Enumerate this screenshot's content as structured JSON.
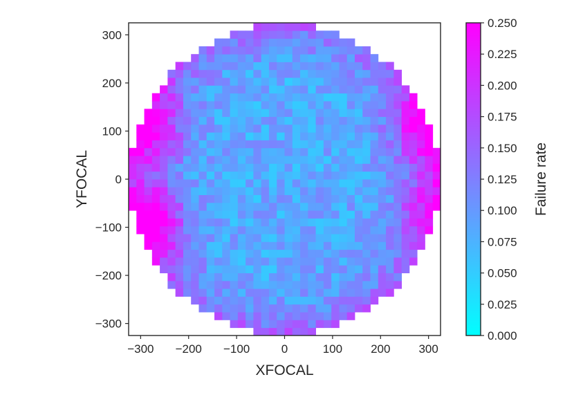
{
  "chart_data": {
    "type": "heatmap",
    "title": "",
    "xlabel": "XFOCAL",
    "ylabel": "YFOCAL",
    "xlim": [
      -325,
      325
    ],
    "ylim": [
      -325,
      325
    ],
    "xticks": [
      -300,
      -200,
      -100,
      0,
      100,
      200,
      300
    ],
    "yticks": [
      -300,
      -200,
      -100,
      0,
      100,
      200,
      300
    ],
    "xtick_labels": [
      "−300",
      "−200",
      "−100",
      "0",
      "100",
      "200",
      "300"
    ],
    "ytick_labels": [
      "−300",
      "−200",
      "−100",
      "0",
      "100",
      "200",
      "300"
    ],
    "grid": false,
    "bins": 40,
    "bin_range": [
      -325,
      325
    ],
    "field_radius": 325,
    "colormap": {
      "name": "cool",
      "low_color": "#00ffff",
      "high_color": "#ff00ff"
    },
    "colorbar": {
      "label": "Failure rate",
      "vmin": 0.0,
      "vmax": 0.25,
      "ticks": [
        0.0,
        0.025,
        0.05,
        0.075,
        0.1,
        0.125,
        0.15,
        0.175,
        0.2,
        0.225,
        0.25
      ],
      "tick_labels": [
        "0.000",
        "0.025",
        "0.050",
        "0.075",
        "0.100",
        "0.125",
        "0.150",
        "0.175",
        "0.200",
        "0.225",
        "0.250"
      ]
    },
    "value_model": {
      "typical": 0.085,
      "high_regions": [
        {
          "x": -285,
          "y": -90,
          "value": 0.25
        },
        {
          "x": -290,
          "y": 110,
          "value": 0.23
        },
        {
          "x": 300,
          "y": 110,
          "value": 0.22
        },
        {
          "x": 310,
          "y": -60,
          "value": 0.18
        }
      ],
      "edge_value": 0.16,
      "noise": 0.035
    }
  }
}
